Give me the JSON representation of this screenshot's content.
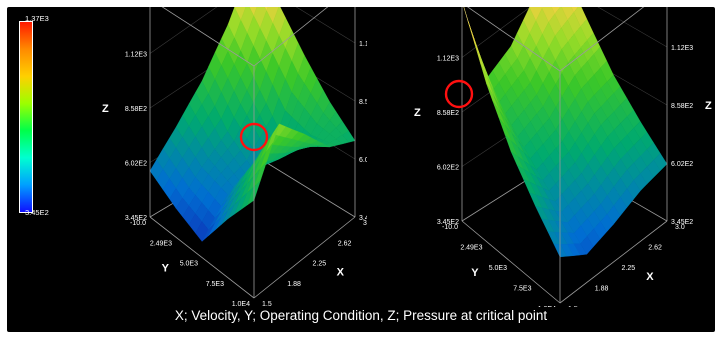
{
  "caption": "X; Velocity, Y; Operating Condition, Z; Pressure at critical point",
  "colorbar": {
    "max_label": "1.37E3",
    "min_label": "3.45E2",
    "colors": [
      "#ff1a00",
      "#ff8a00",
      "#ffd000",
      "#9cff00",
      "#00ff4a",
      "#00ffd0",
      "#00a0ff",
      "#1010ff"
    ]
  },
  "chart_data": [
    {
      "type": "surface",
      "title": "",
      "x": {
        "label": "X",
        "ticks": [
          "1.5",
          "1.88",
          "2.25",
          "2.62",
          "3.0"
        ],
        "range": [
          1.5,
          3.0
        ]
      },
      "y": {
        "label": "Y",
        "ticks": [
          "-10.0",
          "2.49E3",
          "5.0E3",
          "7.5E3",
          "1.0E4"
        ],
        "range": [
          -10.0,
          10000
        ]
      },
      "z": {
        "label": "Z",
        "ticks": [
          "3.45E2",
          "6.02E2",
          "8.58E2",
          "1.12E3",
          "1.37E3"
        ],
        "range": [
          345,
          1370
        ]
      },
      "critical_point": {
        "x": 1.5,
        "y": -10.0,
        "z": 1000
      },
      "grid": [
        [
          1370,
          1200,
          1020,
          860,
          740
        ],
        [
          1080,
          900,
          720,
          720,
          800
        ],
        [
          860,
          700,
          600,
          740,
          950
        ],
        [
          700,
          600,
          560,
          800,
          1080
        ],
        [
          560,
          480,
          420,
          620,
          800
        ]
      ]
    },
    {
      "type": "surface",
      "title": "",
      "x": {
        "label": "X",
        "ticks": [
          "1.5",
          "1.88",
          "2.25",
          "2.62",
          "3.0"
        ],
        "range": [
          1.5,
          3.0
        ]
      },
      "y": {
        "label": "Y",
        "ticks": [
          "-10.0",
          "2.49E3",
          "5.0E3",
          "7.5E3",
          "1.0E4"
        ],
        "range": [
          -10.0,
          10000
        ]
      },
      "z": {
        "label": "Z",
        "ticks": [
          "3.45E2",
          "6.02E2",
          "8.58E2",
          "1.12E3",
          "1.37E3"
        ],
        "range": [
          345,
          1370
        ]
      },
      "critical_point": {
        "x": 3.0,
        "y": 10000,
        "z": 1370
      },
      "grid": [
        [
          1370,
          1150,
          940,
          780,
          640
        ],
        [
          1250,
          1060,
          880,
          730,
          600
        ],
        [
          1050,
          900,
          760,
          640,
          530
        ],
        [
          950,
          820,
          700,
          590,
          480
        ],
        [
          1370,
          1080,
          860,
          700,
          560
        ]
      ]
    }
  ]
}
